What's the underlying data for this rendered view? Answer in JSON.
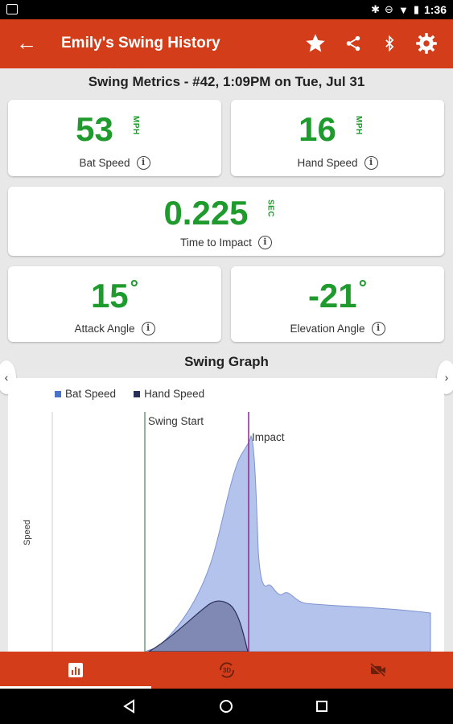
{
  "statusbar": {
    "time": "1:36"
  },
  "appbar": {
    "title": "Emily's Swing History"
  },
  "metrics": {
    "heading": "Swing Metrics - #42, 1:09PM on Tue, Jul 31",
    "bat_speed": {
      "value": "53",
      "unit": "MPH",
      "label": "Bat Speed"
    },
    "hand_speed": {
      "value": "16",
      "unit": "MPH",
      "label": "Hand Speed"
    },
    "time_to_impact": {
      "value": "0.225",
      "unit": "SEC",
      "label": "Time to Impact"
    },
    "attack_angle": {
      "value": "15",
      "unit": "°",
      "label": "Attack Angle"
    },
    "elevation_angle": {
      "value": "-21",
      "unit": "°",
      "label": "Elevation Angle"
    }
  },
  "graph": {
    "title": "Swing Graph",
    "legend": [
      {
        "name": "Bat Speed",
        "color": "#4a72c8"
      },
      {
        "name": "Hand Speed",
        "color": "#2a2f55"
      }
    ],
    "ylabel": "Speed",
    "markers": {
      "swing_start": "Swing Start",
      "impact": "Impact"
    }
  },
  "colors": {
    "accent": "#d33d1a",
    "value_green": "#1f9a2c",
    "bat_fill": "#b3c3ec",
    "hand_fill": "#7f89b4"
  },
  "icons": {
    "back": "arrow-left-icon",
    "favorite": "star-icon",
    "share": "share-icon",
    "bluetooth": "bluetooth-icon",
    "settings": "gear-icon"
  }
}
